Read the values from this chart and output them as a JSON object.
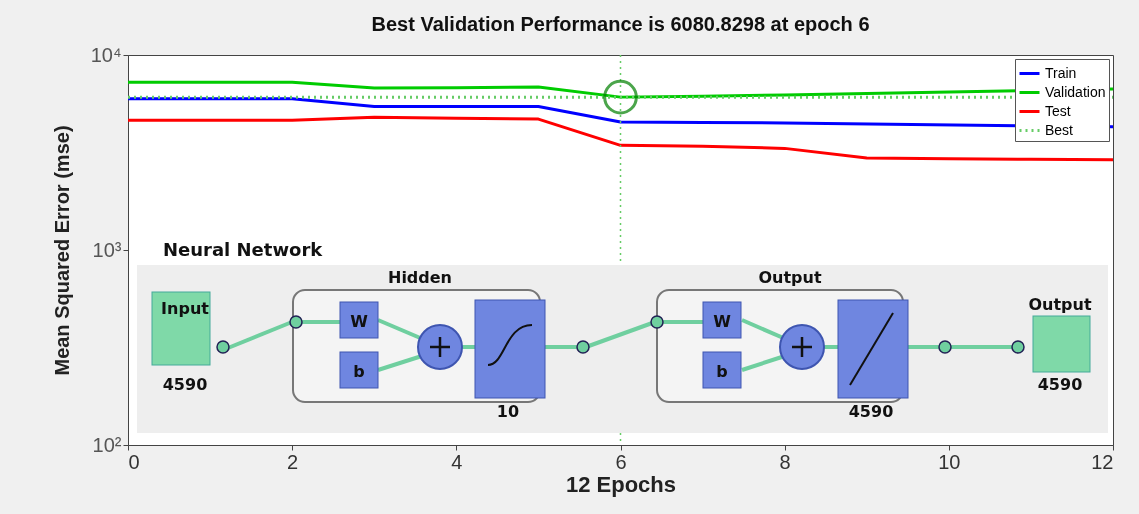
{
  "chart_data": {
    "type": "line",
    "title": "Best Validation Performance is 6080.8298 at epoch 6",
    "xlabel": "12 Epochs",
    "ylabel": "Mean Squared Error  (mse)",
    "x": [
      0,
      1,
      2,
      3,
      4,
      5,
      6,
      7,
      8,
      9,
      10,
      11,
      12
    ],
    "series": [
      {
        "name": "Train",
        "color": "#0000ff",
        "values": [
          5965,
          5965,
          5965,
          5440,
          5440,
          5440,
          4530,
          4510,
          4480,
          null,
          null,
          null,
          4280
        ]
      },
      {
        "name": "Validation",
        "color": "#00cc00",
        "values": [
          7250,
          7250,
          7250,
          6770,
          6800,
          6850,
          6081,
          6150,
          6240,
          null,
          null,
          null,
          6690
        ]
      },
      {
        "name": "Test",
        "color": "#ff0000",
        "values": [
          4630,
          4630,
          4630,
          4790,
          4740,
          4690,
          3440,
          3400,
          3320,
          2960,
          2940,
          2920,
          2900
        ]
      },
      {
        "name": "Best",
        "color": "#66cc66",
        "line_style": "dotted",
        "x": [
          0,
          12
        ],
        "values": [
          6080.8298,
          6080.8298
        ]
      },
      {
        "type": "scatter",
        "color": "#007f00",
        "marker": "circle",
        "x": [
          6
        ],
        "values": [
          6080.8298
        ]
      }
    ],
    "ref_lines": [
      {
        "axis": "x",
        "value": 6,
        "color": "#66cc66",
        "line_style": "dotted"
      }
    ],
    "log": "y",
    "xlim": [
      0,
      12
    ],
    "xticks": [
      0,
      2,
      4,
      6,
      8,
      10,
      12
    ],
    "ylim": [
      100,
      10000
    ],
    "yticks": [
      {
        "value": 100,
        "label": "10²"
      },
      {
        "value": 1000,
        "label": "10³"
      },
      {
        "value": 10000,
        "label": "10⁴"
      }
    ],
    "grid": false,
    "legend": "top right",
    "marker": "none",
    "line_style": "solid",
    "annotations": [
      "Neural Network",
      "Hidden",
      "Output",
      "Input",
      "4590",
      "10",
      "4590",
      "Output",
      "4590",
      "W",
      "b",
      "W",
      "b"
    ]
  }
}
